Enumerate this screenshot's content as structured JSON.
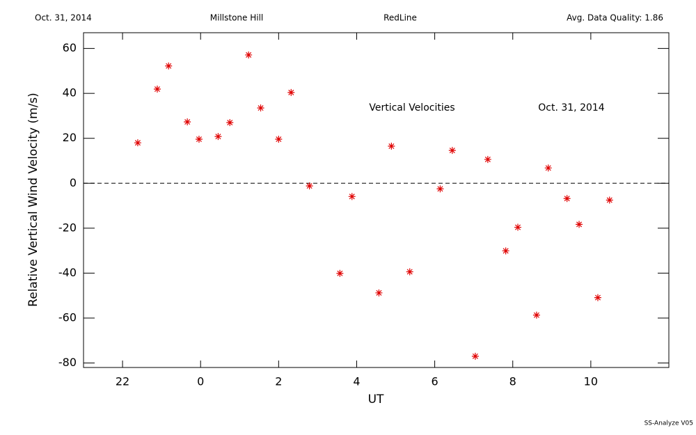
{
  "chart_data": {
    "type": "scatter",
    "header": [
      "Oct. 31, 2014",
      "Millstone Hill",
      "RedLine",
      "Avg. Data Quality: 1.86"
    ],
    "annotations": [
      "Vertical Velocities",
      "Oct. 31, 2014"
    ],
    "footer": "SS-Analyze V05",
    "x_label": "UT",
    "y_label": "Relative Vertical Wind Velocity (m/s)",
    "color": "#e00000",
    "reference_line": 0,
    "xlim": [
      -3,
      12
    ],
    "xticks": [
      {
        "value": -2,
        "label": "22"
      },
      0,
      2,
      4,
      6,
      8,
      10
    ],
    "ylim": [
      -82,
      67
    ],
    "yticks": [
      -80,
      -60,
      -40,
      -20,
      0,
      20,
      40,
      60
    ],
    "x": [
      -1.61,
      -1.11,
      -0.82,
      -0.34,
      -0.04,
      0.45,
      0.75,
      1.23,
      1.54,
      2.0,
      2.32,
      2.79,
      3.57,
      3.88,
      4.57,
      4.89,
      5.36,
      6.14,
      6.45,
      7.04,
      7.36,
      7.82,
      8.13,
      8.61,
      8.91,
      9.39,
      9.7,
      10.18,
      10.48
    ],
    "values": [
      18.0,
      41.9,
      52.2,
      27.3,
      19.6,
      20.8,
      27.0,
      57.1,
      33.5,
      19.6,
      40.4,
      -1.2,
      -40.1,
      -5.9,
      -48.8,
      16.5,
      -39.4,
      -2.5,
      14.6,
      -77.0,
      10.6,
      -30.1,
      -19.6,
      -58.7,
      6.8,
      -6.8,
      -18.3,
      -50.9,
      -7.5
    ]
  }
}
